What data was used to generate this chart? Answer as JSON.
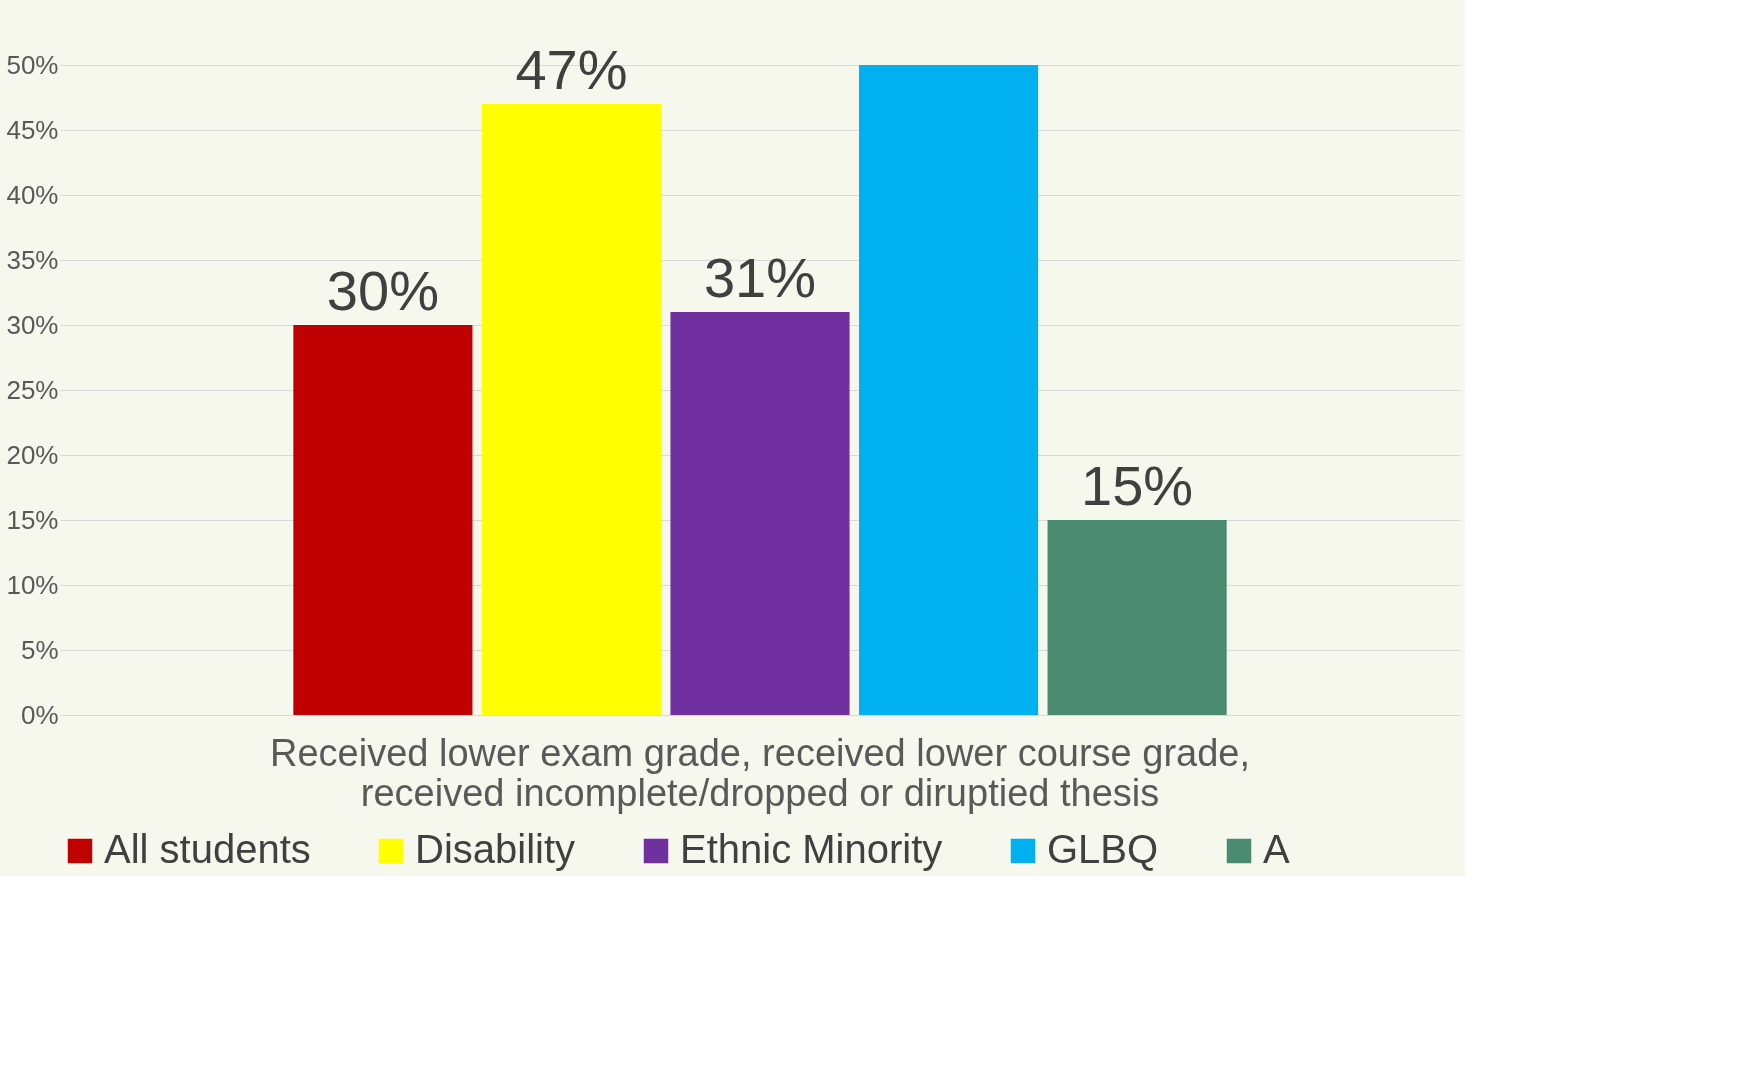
{
  "chart_data": {
    "type": "bar",
    "categories": [
      "Received lower exam grade, received lower course grade, received incomplete/dropped or diruptied thesis"
    ],
    "series": [
      {
        "name": "All students",
        "color": "#c00000",
        "values": [
          30
        ],
        "value_labels": [
          "30%"
        ]
      },
      {
        "name": "Disability",
        "color": "#ffff00",
        "values": [
          47
        ],
        "value_labels": [
          "47%"
        ]
      },
      {
        "name": "Ethnic Minority",
        "color": "#7030a0",
        "values": [
          31
        ],
        "value_labels": [
          "31%"
        ]
      },
      {
        "name": "GLBQ",
        "color": "#00b0f0",
        "values": [
          50
        ],
        "value_labels": [
          null
        ]
      },
      {
        "name": "A",
        "color": "#4a8a70",
        "values": [
          15
        ],
        "value_labels": [
          "15%"
        ]
      }
    ],
    "ylim": [
      0,
      50
    ],
    "yticks": [
      {
        "value": 0,
        "label": "0%"
      },
      {
        "value": 5,
        "label": "5%"
      },
      {
        "value": 10,
        "label": "10%"
      },
      {
        "value": 15,
        "label": "15%"
      },
      {
        "value": 20,
        "label": "20%"
      },
      {
        "value": 25,
        "label": "25%"
      },
      {
        "value": 30,
        "label": "30%"
      },
      {
        "value": 35,
        "label": "35%"
      },
      {
        "value": 40,
        "label": "40%"
      },
      {
        "value": 45,
        "label": "45%"
      },
      {
        "value": 50,
        "label": "50%"
      }
    ],
    "grid": "y",
    "legend": "bottom"
  }
}
